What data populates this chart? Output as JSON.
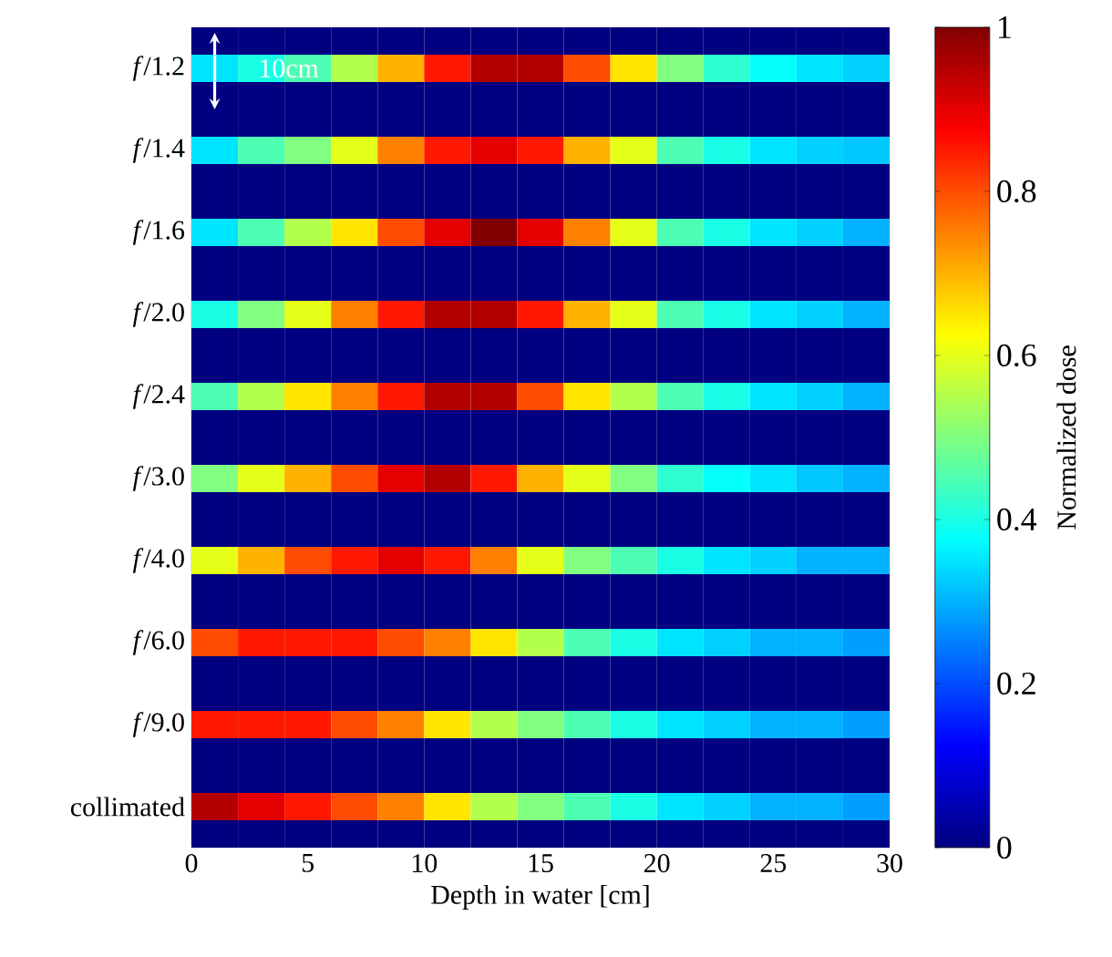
{
  "chart_data": {
    "type": "heatmap",
    "xlabel": "Depth in water [cm]",
    "clabel": "Normalized dose",
    "x": [
      1,
      3,
      5,
      7,
      9,
      11,
      13,
      15,
      17,
      19,
      21,
      23,
      25,
      27,
      29
    ],
    "xlim": [
      0,
      30
    ],
    "xticks": [
      0,
      5,
      10,
      15,
      20,
      25,
      30
    ],
    "y_categories": [
      null,
      "*f*/1.2",
      null,
      null,
      "*f*/1.4",
      null,
      null,
      "*f*/1.6",
      null,
      null,
      "*f*/2.0",
      null,
      null,
      "*f*/2.4",
      null,
      null,
      "*f*/3.0",
      null,
      null,
      "*f*/4.0",
      null,
      null,
      "*f*/6.0",
      null,
      null,
      "*f*/9.0",
      null,
      null,
      "collimated",
      null
    ],
    "cells": [
      [
        0,
        0,
        0,
        0,
        0,
        0,
        0,
        0,
        0,
        0,
        0,
        0,
        0,
        0,
        0
      ],
      [
        0.35,
        0.4,
        0.45,
        0.55,
        0.7,
        0.85,
        0.95,
        0.95,
        0.8,
        0.65,
        0.5,
        0.42,
        0.38,
        0.35,
        0.33
      ],
      [
        0,
        0,
        0,
        0,
        0,
        0,
        0,
        0,
        0,
        0,
        0,
        0,
        0,
        0,
        0
      ],
      [
        0,
        0,
        0,
        0,
        0,
        0,
        0,
        0,
        0,
        0,
        0,
        0,
        0,
        0,
        0
      ],
      [
        0.35,
        0.45,
        0.5,
        0.6,
        0.75,
        0.85,
        0.9,
        0.85,
        0.7,
        0.6,
        0.45,
        0.4,
        0.35,
        0.33,
        0.32
      ],
      [
        0,
        0,
        0,
        0,
        0,
        0,
        0,
        0,
        0,
        0,
        0,
        0,
        0,
        0,
        0
      ],
      [
        0,
        0,
        0,
        0,
        0,
        0,
        0,
        0,
        0,
        0,
        0,
        0,
        0,
        0,
        0
      ],
      [
        0.35,
        0.45,
        0.55,
        0.65,
        0.8,
        0.9,
        1.0,
        0.9,
        0.75,
        0.6,
        0.45,
        0.4,
        0.35,
        0.33,
        0.3
      ],
      [
        0,
        0,
        0,
        0,
        0,
        0,
        0,
        0,
        0,
        0,
        0,
        0,
        0,
        0,
        0
      ],
      [
        0,
        0,
        0,
        0,
        0,
        0,
        0,
        0,
        0,
        0,
        0,
        0,
        0,
        0,
        0
      ],
      [
        0.4,
        0.5,
        0.6,
        0.75,
        0.85,
        0.95,
        0.95,
        0.85,
        0.7,
        0.6,
        0.45,
        0.4,
        0.35,
        0.33,
        0.3
      ],
      [
        0,
        0,
        0,
        0,
        0,
        0,
        0,
        0,
        0,
        0,
        0,
        0,
        0,
        0,
        0
      ],
      [
        0,
        0,
        0,
        0,
        0,
        0,
        0,
        0,
        0,
        0,
        0,
        0,
        0,
        0,
        0
      ],
      [
        0.45,
        0.55,
        0.65,
        0.75,
        0.85,
        0.95,
        0.95,
        0.8,
        0.65,
        0.55,
        0.45,
        0.4,
        0.35,
        0.33,
        0.3
      ],
      [
        0,
        0,
        0,
        0,
        0,
        0,
        0,
        0,
        0,
        0,
        0,
        0,
        0,
        0,
        0
      ],
      [
        0,
        0,
        0,
        0,
        0,
        0,
        0,
        0,
        0,
        0,
        0,
        0,
        0,
        0,
        0
      ],
      [
        0.5,
        0.6,
        0.7,
        0.8,
        0.9,
        0.95,
        0.85,
        0.7,
        0.6,
        0.5,
        0.42,
        0.38,
        0.35,
        0.32,
        0.3
      ],
      [
        0,
        0,
        0,
        0,
        0,
        0,
        0,
        0,
        0,
        0,
        0,
        0,
        0,
        0,
        0
      ],
      [
        0,
        0,
        0,
        0,
        0,
        0,
        0,
        0,
        0,
        0,
        0,
        0,
        0,
        0,
        0
      ],
      [
        0.6,
        0.7,
        0.8,
        0.85,
        0.9,
        0.85,
        0.75,
        0.6,
        0.5,
        0.45,
        0.4,
        0.35,
        0.33,
        0.3,
        0.3
      ],
      [
        0,
        0,
        0,
        0,
        0,
        0,
        0,
        0,
        0,
        0,
        0,
        0,
        0,
        0,
        0
      ],
      [
        0,
        0,
        0,
        0,
        0,
        0,
        0,
        0,
        0,
        0,
        0,
        0,
        0,
        0,
        0
      ],
      [
        0.8,
        0.85,
        0.85,
        0.85,
        0.8,
        0.75,
        0.65,
        0.55,
        0.45,
        0.4,
        0.35,
        0.33,
        0.3,
        0.3,
        0.28
      ],
      [
        0,
        0,
        0,
        0,
        0,
        0,
        0,
        0,
        0,
        0,
        0,
        0,
        0,
        0,
        0
      ],
      [
        0,
        0,
        0,
        0,
        0,
        0,
        0,
        0,
        0,
        0,
        0,
        0,
        0,
        0,
        0
      ],
      [
        0.85,
        0.85,
        0.85,
        0.8,
        0.75,
        0.65,
        0.55,
        0.5,
        0.45,
        0.4,
        0.35,
        0.33,
        0.3,
        0.3,
        0.28
      ],
      [
        0,
        0,
        0,
        0,
        0,
        0,
        0,
        0,
        0,
        0,
        0,
        0,
        0,
        0,
        0
      ],
      [
        0,
        0,
        0,
        0,
        0,
        0,
        0,
        0,
        0,
        0,
        0,
        0,
        0,
        0,
        0
      ],
      [
        0.95,
        0.9,
        0.85,
        0.8,
        0.75,
        0.65,
        0.55,
        0.5,
        0.45,
        0.4,
        0.35,
        0.33,
        0.3,
        0.3,
        0.28
      ],
      [
        0,
        0,
        0,
        0,
        0,
        0,
        0,
        0,
        0,
        0,
        0,
        0,
        0,
        0,
        0
      ]
    ],
    "clim": [
      0,
      1
    ],
    "cticks": [
      0,
      0.2,
      0.4,
      0.6,
      0.8,
      1
    ],
    "annotations": [
      "10cm"
    ]
  }
}
